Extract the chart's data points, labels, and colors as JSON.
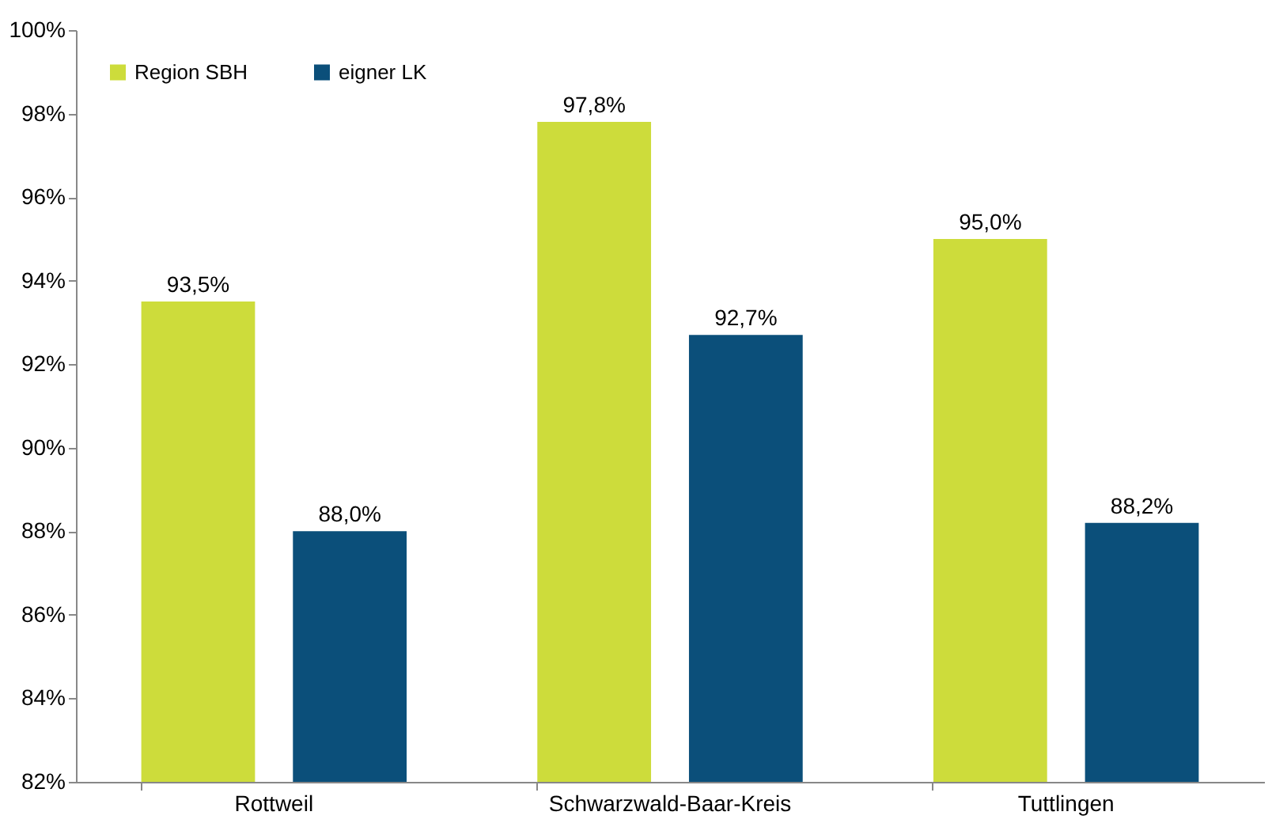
{
  "chart_data": {
    "type": "bar",
    "categories": [
      "Rottweil",
      "Schwarzwald-Baar-Kreis",
      "Tuttlingen"
    ],
    "series": [
      {
        "name": "Region SBH",
        "color": "#cddc3b",
        "values": [
          93.5,
          97.8,
          95.0
        ],
        "value_labels": [
          "93,5%",
          "97,8%",
          "95,0%"
        ]
      },
      {
        "name": "eigner LK",
        "color": "#0b4f7a",
        "values": [
          88.0,
          92.7,
          88.2
        ],
        "value_labels": [
          "88,0%",
          "92,7%",
          "88,2%"
        ]
      }
    ],
    "ylim": [
      82,
      100
    ],
    "yticks": [
      {
        "value": 82,
        "label": "82%"
      },
      {
        "value": 84,
        "label": "84%"
      },
      {
        "value": 86,
        "label": "86%"
      },
      {
        "value": 88,
        "label": "88%"
      },
      {
        "value": 90,
        "label": "90%"
      },
      {
        "value": 92,
        "label": "92%"
      },
      {
        "value": 94,
        "label": "94%"
      },
      {
        "value": 96,
        "label": "96%"
      },
      {
        "value": 98,
        "label": "98%"
      },
      {
        "value": 100,
        "label": "100%"
      }
    ],
    "grid": false,
    "legend": "top left"
  }
}
